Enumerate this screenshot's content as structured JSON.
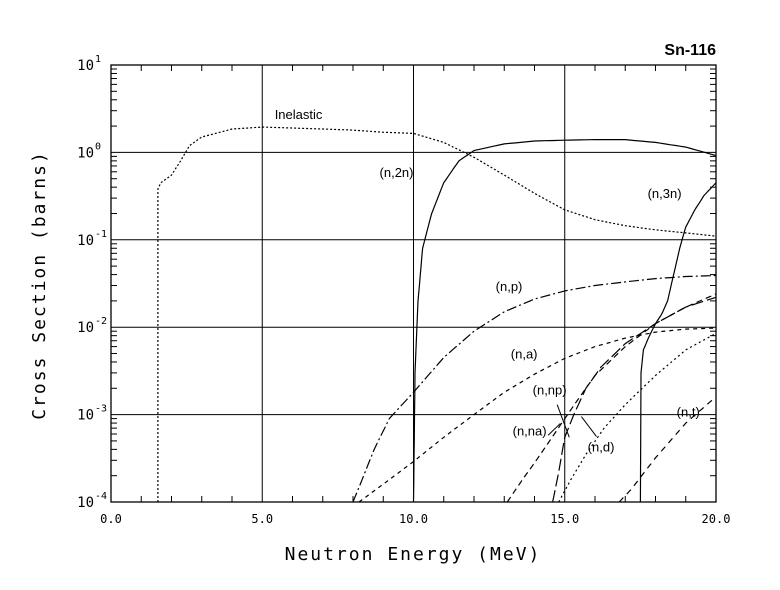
{
  "chart_data": {
    "type": "line",
    "title": "Sn-116",
    "xlabel": "Neutron Energy (MeV)",
    "ylabel": "Cross Section (barns)",
    "x_scale": "linear",
    "y_scale": "log",
    "xlim": [
      0,
      20
    ],
    "ylim": [
      0.0001,
      10
    ],
    "grid": true,
    "x_ticks": [
      0,
      5,
      10,
      15,
      20
    ],
    "x_tick_labels": [
      "0.0",
      "5.0",
      "10.0",
      "15.0",
      "20.0"
    ],
    "y_ticks": [
      {
        "value": 0.0001,
        "base": "10",
        "exp": "-4"
      },
      {
        "value": 0.001,
        "base": "10",
        "exp": "-3"
      },
      {
        "value": 0.01,
        "base": "10",
        "exp": "-2"
      },
      {
        "value": 0.1,
        "base": "10",
        "exp": "-1"
      },
      {
        "value": 1,
        "base": "10",
        "exp": "0"
      },
      {
        "value": 10,
        "base": "10",
        "exp": "1"
      }
    ],
    "series": [
      {
        "name": "Inelastic",
        "label": "Inelastic",
        "dash": "2,2",
        "points": [
          [
            1.55,
            0.0001
          ],
          [
            1.55,
            0.38
          ],
          [
            1.65,
            0.45
          ],
          [
            2.0,
            0.55
          ],
          [
            2.3,
            0.8
          ],
          [
            2.6,
            1.2
          ],
          [
            3.0,
            1.5
          ],
          [
            4.0,
            1.85
          ],
          [
            5.0,
            1.95
          ],
          [
            6.0,
            1.9
          ],
          [
            7.0,
            1.85
          ],
          [
            8.0,
            1.8
          ],
          [
            9.0,
            1.7
          ],
          [
            10.0,
            1.65
          ],
          [
            11.0,
            1.3
          ],
          [
            12.0,
            0.88
          ],
          [
            13.0,
            0.55
          ],
          [
            14.0,
            0.34
          ],
          [
            15.0,
            0.22
          ],
          [
            16.0,
            0.17
          ],
          [
            17.0,
            0.145
          ],
          [
            18.0,
            0.13
          ],
          [
            19.0,
            0.12
          ],
          [
            20.0,
            0.11
          ]
        ]
      },
      {
        "name": "(n,2n)",
        "label": "(n,2n)",
        "dash": "",
        "points": [
          [
            10.0,
            0.0001
          ],
          [
            10.05,
            0.003
          ],
          [
            10.15,
            0.02
          ],
          [
            10.3,
            0.08
          ],
          [
            10.6,
            0.2
          ],
          [
            11.0,
            0.45
          ],
          [
            11.5,
            0.8
          ],
          [
            12.0,
            1.05
          ],
          [
            13.0,
            1.25
          ],
          [
            14.0,
            1.35
          ],
          [
            15.0,
            1.38
          ],
          [
            16.0,
            1.4
          ],
          [
            17.0,
            1.4
          ],
          [
            18.0,
            1.3
          ],
          [
            19.0,
            1.15
          ],
          [
            20.0,
            0.92
          ]
        ]
      },
      {
        "name": "(n,3n)",
        "label": "(n,3n)",
        "dash": "",
        "points": [
          [
            17.5,
            0.0001
          ],
          [
            17.52,
            0.003
          ],
          [
            17.6,
            0.0055
          ],
          [
            17.8,
            0.008
          ],
          [
            18.0,
            0.011
          ],
          [
            18.2,
            0.014
          ],
          [
            18.4,
            0.02
          ],
          [
            18.6,
            0.04
          ],
          [
            18.8,
            0.08
          ],
          [
            19.0,
            0.14
          ],
          [
            19.3,
            0.22
          ],
          [
            19.6,
            0.32
          ],
          [
            20.0,
            0.45
          ]
        ]
      },
      {
        "name": "(n,p)",
        "label": "(n,p)",
        "dash": "10,3,2,3",
        "points": [
          [
            8.0,
            0.0001
          ],
          [
            8.3,
            0.00018
          ],
          [
            8.7,
            0.0004
          ],
          [
            9.2,
            0.0009
          ],
          [
            10.0,
            0.0018
          ],
          [
            11.0,
            0.0045
          ],
          [
            12.0,
            0.009
          ],
          [
            13.0,
            0.015
          ],
          [
            14.0,
            0.021
          ],
          [
            15.0,
            0.026
          ],
          [
            16.0,
            0.03
          ],
          [
            17.0,
            0.033
          ],
          [
            18.0,
            0.036
          ],
          [
            19.0,
            0.038
          ],
          [
            20.0,
            0.039
          ]
        ]
      },
      {
        "name": "(n,a)",
        "label": "(n,a)",
        "dash": "4,4",
        "points": [
          [
            8.2,
            0.0001
          ],
          [
            9.0,
            0.00016
          ],
          [
            10.0,
            0.00029
          ],
          [
            11.0,
            0.00055
          ],
          [
            12.0,
            0.001
          ],
          [
            13.0,
            0.0018
          ],
          [
            14.0,
            0.0029
          ],
          [
            15.0,
            0.0044
          ],
          [
            16.0,
            0.006
          ],
          [
            17.0,
            0.0075
          ],
          [
            18.0,
            0.0088
          ],
          [
            19.0,
            0.0095
          ],
          [
            20.0,
            0.0098
          ]
        ]
      },
      {
        "name": "(n,na)",
        "label": "(n,na)",
        "dash": "6,4",
        "points": [
          [
            13.1,
            0.0001
          ],
          [
            13.6,
            0.00018
          ],
          [
            14.0,
            0.00028
          ],
          [
            14.5,
            0.0005
          ],
          [
            15.0,
            0.0009
          ],
          [
            15.5,
            0.0016
          ],
          [
            16.0,
            0.0028
          ],
          [
            17.0,
            0.006
          ],
          [
            18.0,
            0.011
          ],
          [
            19.0,
            0.017
          ],
          [
            20.0,
            0.024
          ]
        ]
      },
      {
        "name": "(n,np)",
        "label": "(n,np)",
        "dash": "12,4",
        "points": [
          [
            14.6,
            0.0001
          ],
          [
            14.8,
            0.00022
          ],
          [
            15.0,
            0.00055
          ],
          [
            15.3,
            0.001
          ],
          [
            15.7,
            0.002
          ],
          [
            16.2,
            0.0035
          ],
          [
            17.0,
            0.0065
          ],
          [
            18.0,
            0.011
          ],
          [
            19.0,
            0.017
          ],
          [
            20.0,
            0.022
          ]
        ]
      },
      {
        "name": "(n,d)",
        "label": "(n,d)",
        "dash": "2,3",
        "points": [
          [
            14.8,
            0.0001
          ],
          [
            15.2,
            0.00018
          ],
          [
            15.7,
            0.00035
          ],
          [
            16.3,
            0.0007
          ],
          [
            17.0,
            0.0013
          ],
          [
            18.0,
            0.0028
          ],
          [
            19.0,
            0.0055
          ],
          [
            20.0,
            0.0085
          ]
        ]
      },
      {
        "name": "(n,t)",
        "label": "(n,t)",
        "dash": "6,5",
        "points": [
          [
            16.8,
            0.0001
          ],
          [
            17.2,
            0.00014
          ],
          [
            18.0,
            0.00032
          ],
          [
            19.0,
            0.0008
          ],
          [
            20.0,
            0.0016
          ]
        ]
      }
    ],
    "annotations": [
      {
        "text": "Inelastic",
        "x": 6.2,
        "y": 2.4,
        "anchor": "middle",
        "leader": null
      },
      {
        "text": "(n,2n)",
        "x": 10.0,
        "y": 0.52,
        "anchor": "end",
        "leader": null
      },
      {
        "text": "(n,3n)",
        "x": 18.3,
        "y": 0.3,
        "anchor": "middle",
        "leader": null
      },
      {
        "text": "(n,p)",
        "x": 13.6,
        "y": 0.026,
        "anchor": "end",
        "leader": null
      },
      {
        "text": "(n,a)",
        "x": 14.1,
        "y": 0.0044,
        "anchor": "end",
        "leader": null
      },
      {
        "text": "(n,np)",
        "x": 14.5,
        "y": 0.0017,
        "anchor": "middle",
        "leader": [
          [
            14.75,
            0.0013
          ],
          [
            15.15,
            0.00055
          ]
        ]
      },
      {
        "text": "(n,na)",
        "x": 14.4,
        "y": 0.00058,
        "anchor": "end",
        "leader": [
          [
            14.45,
            0.00058
          ],
          [
            14.85,
            0.00079
          ]
        ]
      },
      {
        "text": "(n,d)",
        "x": 16.2,
        "y": 0.00038,
        "anchor": "middle",
        "leader": [
          [
            16.05,
            0.00056
          ],
          [
            15.55,
            0.00095
          ]
        ]
      },
      {
        "text": "(n,t)",
        "x": 18.7,
        "y": 0.00095,
        "anchor": "start",
        "leader": null
      }
    ]
  }
}
